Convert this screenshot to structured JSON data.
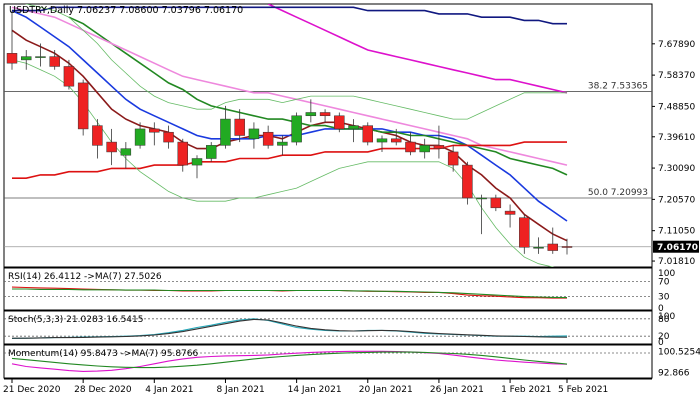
{
  "chart_data": {
    "type": "candlestick",
    "symbol_info": "USDTRY,Daily  7.06237 7.08600 7.03796 7.06170",
    "colors": {
      "up": "#22aa22",
      "down": "#ee2222",
      "ma_fast": "#8b1a1a",
      "ma_blue": "#1a3adf",
      "ma_green": "#228822",
      "ma_pink": "#ee88dd",
      "ma_magenta": "#dd11cc",
      "ma_navy": "#101880",
      "ma_red": "#dd1111",
      "bb": "#66bb66",
      "current": "#000000"
    },
    "ylim": [
      7.0,
      7.8
    ],
    "yticks": [
      "7.67890",
      "7.58370",
      "7.48850",
      "7.39610",
      "7.30090",
      "7.20570",
      "7.11050",
      "7.01810"
    ],
    "ytick_values": [
      7.6789,
      7.5837,
      7.4885,
      7.3961,
      7.3009,
      7.2057,
      7.1105,
      7.0181
    ],
    "current_price_label": "7.06170",
    "current_price": 7.0617,
    "fib_levels": [
      {
        "label": "38.2  7.53365",
        "value": 7.53365
      },
      {
        "label": "50.0  7.20993",
        "value": 7.20993
      }
    ],
    "x_labels": [
      "21 Dec 2020",
      "28 Dec 2020",
      "4 Jan 2021",
      "8 Jan 2021",
      "14 Jan 2021",
      "20 Jan 2021",
      "26 Jan 2021",
      "1 Feb 2021",
      "5 Feb 2021"
    ],
    "x_label_index": [
      0,
      5,
      10,
      15,
      20,
      25,
      30,
      35,
      39
    ],
    "candles": [
      {
        "o": 7.65,
        "h": 7.78,
        "l": 7.6,
        "c": 7.62
      },
      {
        "o": 7.63,
        "h": 7.66,
        "l": 7.6,
        "c": 7.64
      },
      {
        "o": 7.64,
        "h": 7.68,
        "l": 7.61,
        "c": 7.64
      },
      {
        "o": 7.64,
        "h": 7.66,
        "l": 7.6,
        "c": 7.61
      },
      {
        "o": 7.61,
        "h": 7.63,
        "l": 7.54,
        "c": 7.55
      },
      {
        "o": 7.56,
        "h": 7.57,
        "l": 7.4,
        "c": 7.42
      },
      {
        "o": 7.43,
        "h": 7.45,
        "l": 7.33,
        "c": 7.37
      },
      {
        "o": 7.38,
        "h": 7.42,
        "l": 7.31,
        "c": 7.35
      },
      {
        "o": 7.34,
        "h": 7.38,
        "l": 7.3,
        "c": 7.36
      },
      {
        "o": 7.37,
        "h": 7.44,
        "l": 7.36,
        "c": 7.42
      },
      {
        "o": 7.42,
        "h": 7.44,
        "l": 7.37,
        "c": 7.41
      },
      {
        "o": 7.41,
        "h": 7.43,
        "l": 7.36,
        "c": 7.38
      },
      {
        "o": 7.38,
        "h": 7.39,
        "l": 7.29,
        "c": 7.31
      },
      {
        "o": 7.31,
        "h": 7.34,
        "l": 7.27,
        "c": 7.33
      },
      {
        "o": 7.33,
        "h": 7.38,
        "l": 7.32,
        "c": 7.37
      },
      {
        "o": 7.37,
        "h": 7.49,
        "l": 7.36,
        "c": 7.45
      },
      {
        "o": 7.45,
        "h": 7.48,
        "l": 7.38,
        "c": 7.4
      },
      {
        "o": 7.39,
        "h": 7.44,
        "l": 7.36,
        "c": 7.42
      },
      {
        "o": 7.41,
        "h": 7.43,
        "l": 7.36,
        "c": 7.37
      },
      {
        "o": 7.37,
        "h": 7.4,
        "l": 7.34,
        "c": 7.38
      },
      {
        "o": 7.38,
        "h": 7.47,
        "l": 7.37,
        "c": 7.46
      },
      {
        "o": 7.46,
        "h": 7.51,
        "l": 7.44,
        "c": 7.47
      },
      {
        "o": 7.47,
        "h": 7.48,
        "l": 7.44,
        "c": 7.46
      },
      {
        "o": 7.46,
        "h": 7.47,
        "l": 7.41,
        "c": 7.42
      },
      {
        "o": 7.42,
        "h": 7.45,
        "l": 7.38,
        "c": 7.43
      },
      {
        "o": 7.43,
        "h": 7.44,
        "l": 7.37,
        "c": 7.38
      },
      {
        "o": 7.38,
        "h": 7.4,
        "l": 7.35,
        "c": 7.39
      },
      {
        "o": 7.39,
        "h": 7.42,
        "l": 7.37,
        "c": 7.38
      },
      {
        "o": 7.38,
        "h": 7.41,
        "l": 7.34,
        "c": 7.35
      },
      {
        "o": 7.35,
        "h": 7.39,
        "l": 7.33,
        "c": 7.37
      },
      {
        "o": 7.37,
        "h": 7.43,
        "l": 7.33,
        "c": 7.36
      },
      {
        "o": 7.35,
        "h": 7.37,
        "l": 7.29,
        "c": 7.31
      },
      {
        "o": 7.31,
        "h": 7.32,
        "l": 7.19,
        "c": 7.21
      },
      {
        "o": 7.21,
        "h": 7.22,
        "l": 7.1,
        "c": 7.21
      },
      {
        "o": 7.21,
        "h": 7.22,
        "l": 7.17,
        "c": 7.18
      },
      {
        "o": 7.17,
        "h": 7.19,
        "l": 7.12,
        "c": 7.16
      },
      {
        "o": 7.15,
        "h": 7.16,
        "l": 7.04,
        "c": 7.06
      },
      {
        "o": 7.06,
        "h": 7.09,
        "l": 7.04,
        "c": 7.06
      },
      {
        "o": 7.07,
        "h": 7.12,
        "l": 7.04,
        "c": 7.05
      },
      {
        "o": 7.06237,
        "h": 7.086,
        "l": 7.03796,
        "c": 7.0617
      }
    ],
    "overlays": [
      {
        "key": "ma_fast",
        "values": [
          7.72,
          7.69,
          7.67,
          7.65,
          7.62,
          7.58,
          7.53,
          7.48,
          7.45,
          7.43,
          7.42,
          7.41,
          7.38,
          7.36,
          7.36,
          7.38,
          7.39,
          7.4,
          7.4,
          7.39,
          7.41,
          7.43,
          7.44,
          7.44,
          7.43,
          7.42,
          7.41,
          7.4,
          7.38,
          7.37,
          7.37,
          7.35,
          7.31,
          7.28,
          7.24,
          7.21,
          7.16,
          7.13,
          7.1,
          7.08
        ]
      },
      {
        "key": "ma_blue",
        "values": [
          7.78,
          7.76,
          7.73,
          7.7,
          7.67,
          7.63,
          7.59,
          7.55,
          7.51,
          7.48,
          7.46,
          7.44,
          7.42,
          7.4,
          7.39,
          7.39,
          7.39,
          7.39,
          7.4,
          7.4,
          7.4,
          7.41,
          7.42,
          7.42,
          7.42,
          7.42,
          7.42,
          7.41,
          7.41,
          7.4,
          7.4,
          7.39,
          7.37,
          7.34,
          7.31,
          7.28,
          7.24,
          7.2,
          7.17,
          7.14
        ]
      },
      {
        "key": "ma_green",
        "values": [
          null,
          null,
          null,
          null,
          7.76,
          7.74,
          7.71,
          7.68,
          7.65,
          7.62,
          7.59,
          7.56,
          7.54,
          7.51,
          7.49,
          7.48,
          7.47,
          7.46,
          7.45,
          7.45,
          7.44,
          7.43,
          7.43,
          7.42,
          7.42,
          7.42,
          7.41,
          7.41,
          7.4,
          7.4,
          7.39,
          7.38,
          7.37,
          7.36,
          7.35,
          7.33,
          7.32,
          7.31,
          7.3,
          7.28
        ]
      },
      {
        "key": "ma_pink",
        "values": [
          7.79,
          7.78,
          7.77,
          7.76,
          7.74,
          7.72,
          7.7,
          7.68,
          7.66,
          7.64,
          7.62,
          7.6,
          7.58,
          7.57,
          7.56,
          7.55,
          7.54,
          7.53,
          7.53,
          7.52,
          7.51,
          7.5,
          7.49,
          7.48,
          7.47,
          7.46,
          7.45,
          7.44,
          7.43,
          7.42,
          7.41,
          7.4,
          7.39,
          7.37,
          7.36,
          7.35,
          7.34,
          7.33,
          7.32,
          7.31
        ]
      },
      {
        "key": "ma_magenta",
        "values": [
          null,
          null,
          null,
          null,
          null,
          null,
          null,
          null,
          null,
          null,
          null,
          null,
          null,
          null,
          null,
          null,
          null,
          null,
          7.8,
          7.78,
          7.76,
          7.74,
          7.72,
          7.7,
          7.68,
          7.66,
          7.65,
          7.64,
          7.63,
          7.62,
          7.61,
          7.6,
          7.59,
          7.58,
          7.57,
          7.57,
          7.56,
          7.55,
          7.54,
          7.53
        ]
      },
      {
        "key": "ma_navy",
        "values": [
          7.78,
          7.78,
          7.78,
          7.79,
          7.79,
          7.79,
          7.79,
          7.79,
          7.79,
          7.79,
          7.79,
          7.79,
          7.79,
          7.79,
          7.79,
          7.79,
          7.79,
          7.79,
          7.79,
          7.79,
          7.79,
          7.79,
          7.79,
          7.79,
          7.79,
          7.78,
          7.78,
          7.78,
          7.78,
          7.78,
          7.77,
          7.77,
          7.77,
          7.76,
          7.76,
          7.76,
          7.75,
          7.75,
          7.74,
          7.74
        ]
      },
      {
        "key": "ma_red",
        "values": [
          7.27,
          7.27,
          7.28,
          7.28,
          7.29,
          7.29,
          7.29,
          7.3,
          7.3,
          7.3,
          7.31,
          7.31,
          7.31,
          7.32,
          7.32,
          7.32,
          7.33,
          7.33,
          7.33,
          7.34,
          7.34,
          7.34,
          7.35,
          7.35,
          7.35,
          7.35,
          7.36,
          7.36,
          7.36,
          7.36,
          7.36,
          7.37,
          7.37,
          7.37,
          7.37,
          7.37,
          7.38,
          7.38,
          7.38,
          7.38
        ]
      },
      {
        "key": "bb",
        "values": [
          7.81,
          7.8,
          7.79,
          7.78,
          7.76,
          7.72,
          7.68,
          7.63,
          7.59,
          7.55,
          7.52,
          7.5,
          7.49,
          7.48,
          7.48,
          7.5,
          7.51,
          7.51,
          7.51,
          7.5,
          7.51,
          7.52,
          7.52,
          7.52,
          7.52,
          7.51,
          7.5,
          7.49,
          7.48,
          7.47,
          7.46,
          7.45,
          7.45,
          7.47,
          7.49,
          7.51,
          7.53,
          7.53,
          7.53,
          7.53
        ]
      },
      {
        "key": "bb",
        "values": [
          7.63,
          7.62,
          7.6,
          7.58,
          7.55,
          7.5,
          7.44,
          7.38,
          7.33,
          7.29,
          7.26,
          7.23,
          7.21,
          7.2,
          7.2,
          7.2,
          7.21,
          7.21,
          7.22,
          7.23,
          7.24,
          7.26,
          7.28,
          7.3,
          7.31,
          7.32,
          7.32,
          7.32,
          7.32,
          7.32,
          7.32,
          7.3,
          7.25,
          7.18,
          7.12,
          7.07,
          7.03,
          7.01,
          7.0,
          6.99
        ]
      }
    ],
    "panels": [
      {
        "title": "RSI(14) 26.4112  ->MA(7) 27.5026",
        "ylim": [
          0,
          100
        ],
        "ticks": [
          "100",
          "70",
          "30",
          "0"
        ],
        "tick_values": [
          100,
          70,
          30,
          0
        ],
        "levels": [
          70,
          30
        ],
        "series": [
          {
            "values": [
              55,
              54,
              53,
              52,
              51,
              50,
              49,
              48,
              47,
              47,
              46,
              46,
              45,
              45,
              45,
              46,
              46,
              46,
              46,
              45,
              46,
              46,
              46,
              46,
              45,
              44,
              44,
              43,
              42,
              41,
              41,
              38,
              34,
              32,
              31,
              29,
              27,
              27,
              26,
              26
            ],
            "color": "#dd1111"
          },
          {
            "values": [
              50,
              50,
              49,
              49,
              49,
              48,
              48,
              48,
              47,
              47,
              47,
              46,
              46,
              46,
              46,
              46,
              46,
              46,
              46,
              46,
              46,
              46,
              46,
              46,
              45,
              45,
              44,
              44,
              43,
              42,
              41,
              40,
              38,
              36,
              34,
              32,
              30,
              29,
              28,
              27.5
            ],
            "color": "#228822"
          }
        ]
      },
      {
        "title": "Stoch(5,3,3) 21.0283  16.5415",
        "ylim": [
          0,
          100
        ],
        "ticks": [
          "100",
          "80",
          "20",
          "0"
        ],
        "tick_values": [
          100,
          80,
          20,
          0
        ],
        "levels": [
          80,
          20
        ],
        "series": [
          {
            "values": [
              12,
              13,
              14,
              15,
              16,
              17,
              18,
              19,
              20,
              22,
              26,
              32,
              40,
              50,
              58,
              68,
              76,
              80,
              74,
              62,
              50,
              44,
              40,
              38,
              38,
              40,
              40,
              38,
              34,
              30,
              28,
              26,
              24,
              22,
              20,
              20,
              20,
              19,
              20,
              21
            ],
            "color": "#22a7b8"
          },
          {
            "values": [
              13,
              13,
              14,
              15,
              15,
              16,
              17,
              18,
              19,
              21,
              24,
              29,
              36,
              45,
              54,
              63,
              72,
              78,
              76,
              66,
              55,
              47,
              42,
              39,
              38,
              39,
              40,
              39,
              36,
              32,
              29,
              27,
              25,
              23,
              21,
              20,
              19,
              18,
              17,
              16.5
            ],
            "color": "#333333"
          }
        ]
      },
      {
        "title": "Momentum(14) 95.8473  ->MA(7) 95.8766",
        "ylim": [
          91.5,
          102.2
        ],
        "ticks": [
          "100.5254",
          "92.866"
        ],
        "tick_values": [
          100.5254,
          92.866
        ],
        "levels": [
          100
        ],
        "series": [
          {
            "values": [
              96,
              95,
              94.5,
              94,
              93.5,
              93.2,
              93.3,
              93.6,
              94.2,
              95,
              96,
              97,
              97.8,
              98.4,
              98.7,
              98.9,
              99,
              99.1,
              99.3,
              99.6,
              99.9,
              100.2,
              100.4,
              100.5,
              100.6,
              100.6,
              100.6,
              100.5,
              100.4,
              100.1,
              99.8,
              99.2,
              98.6,
              98,
              97.4,
              97,
              96.6,
              96.3,
              96,
              95.85
            ],
            "color": "#dd11cc"
          },
          {
            "values": [
              98,
              97.5,
              97,
              96.5,
              96,
              95.6,
              95.2,
              94.9,
              94.7,
              94.6,
              94.6,
              94.8,
              95.1,
              95.5,
              96,
              96.6,
              97.2,
              97.8,
              98.3,
              98.7,
              99.1,
              99.4,
              99.7,
              99.9,
              100.1,
              100.2,
              100.3,
              100.3,
              100.3,
              100.2,
              100,
              99.8,
              99.5,
              99.1,
              98.6,
              98,
              97.4,
              96.9,
              96.4,
              95.9
            ],
            "color": "#228822"
          }
        ]
      }
    ]
  }
}
